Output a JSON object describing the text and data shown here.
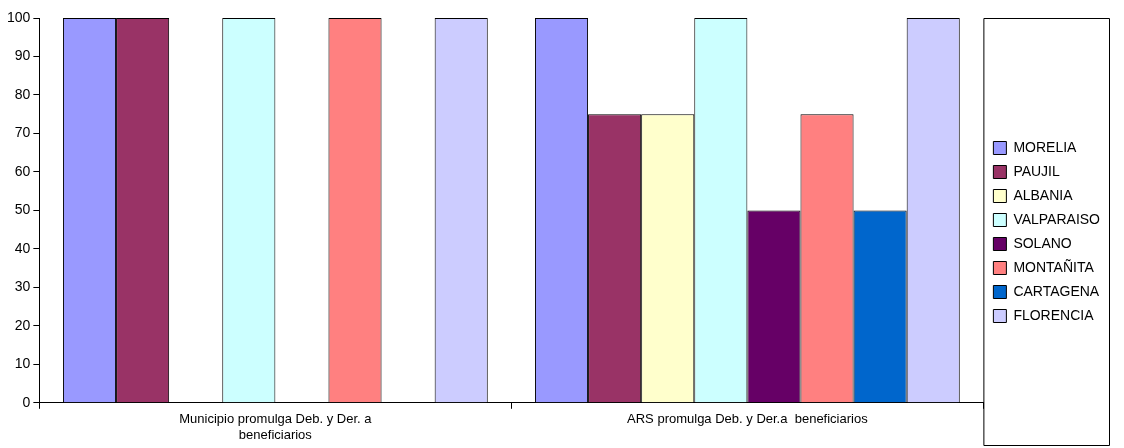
{
  "chart_data": {
    "type": "bar",
    "categories": [
      "Municipio promulga Deb. y Der. a beneficiarios",
      "ARS promulga Deb. y Der.a  beneficiarios"
    ],
    "series": [
      {
        "name": "MORELIA",
        "color": "#9999ff",
        "values": [
          100,
          100
        ]
      },
      {
        "name": "PAUJIL",
        "color": "#993366",
        "values": [
          100,
          75
        ]
      },
      {
        "name": "ALBANIA",
        "color": "#ffffcc",
        "values": [
          0,
          75
        ]
      },
      {
        "name": "VALPARAISO",
        "color": "#ccffff",
        "values": [
          100,
          100
        ]
      },
      {
        "name": "SOLANO",
        "color": "#660066",
        "values": [
          0,
          50
        ]
      },
      {
        "name": "MONTAÑITA",
        "color": "#ff8080",
        "values": [
          100,
          75
        ]
      },
      {
        "name": "CARTAGENA",
        "color": "#0066cc",
        "values": [
          0,
          50
        ]
      },
      {
        "name": "FLORENCIA",
        "color": "#ccccff",
        "values": [
          100,
          100
        ]
      }
    ],
    "ylim": [
      0,
      100
    ],
    "yticks": [
      0,
      10,
      20,
      30,
      40,
      50,
      60,
      70,
      80,
      90,
      100
    ],
    "grid": false,
    "legend": "right"
  }
}
